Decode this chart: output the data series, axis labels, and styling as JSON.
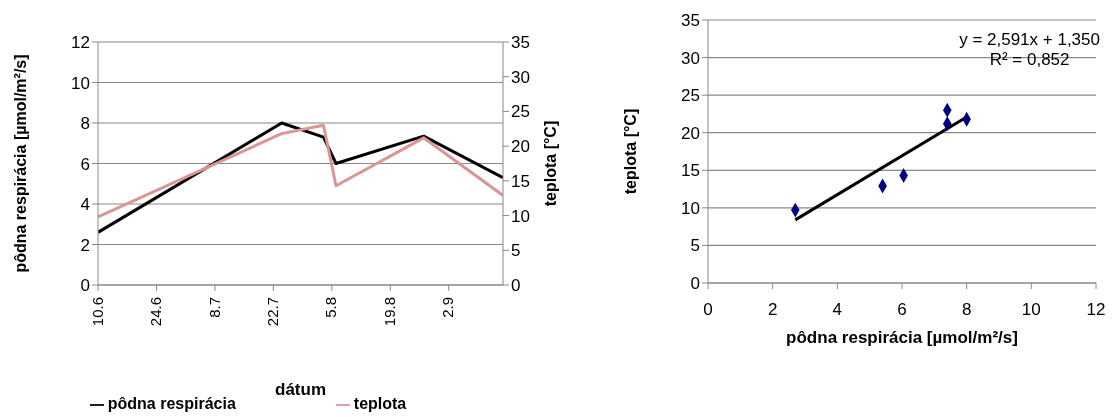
{
  "chart_data": [
    {
      "type": "line",
      "xlabel": "dátum",
      "ylabel": "pôdna respirácia [µmol/m²/s]",
      "y2label": "teplota [°C]",
      "x": [
        "--06-10",
        "--07-24",
        "--08-03",
        "--08-06",
        "--08-27",
        "--09-15"
      ],
      "xlim": [
        "--06-10",
        "--09-15"
      ],
      "xticks": [
        {
          "value": "--06-10",
          "label": "10.6"
        },
        {
          "value": "--06-24",
          "label": "24.6"
        },
        {
          "value": "--07-08",
          "label": "8.7"
        },
        {
          "value": "--07-22",
          "label": "22.7"
        },
        {
          "value": "--08-05",
          "label": "5.8"
        },
        {
          "value": "--08-19",
          "label": "19.8"
        },
        {
          "value": "--09-02",
          "label": "2.9"
        }
      ],
      "ylim": [
        0,
        12
      ],
      "yticks": [
        0,
        2,
        4,
        6,
        8,
        10,
        12
      ],
      "y2lim": [
        0,
        35
      ],
      "y2ticks": [
        0,
        5,
        10,
        15,
        20,
        25,
        30,
        35
      ],
      "series": [
        {
          "name": "pôdna respirácia",
          "color": "#000000",
          "values": [
            2.6,
            8.0,
            7.3,
            6.0,
            7.35,
            5.3
          ]
        },
        {
          "name": "teplota",
          "color": "#d99694",
          "axis": "y2",
          "values": [
            9.8,
            21.8,
            23.0,
            14.3,
            21.2,
            12.9
          ]
        }
      ],
      "grid": "y",
      "legend": "bottom",
      "marker": "none",
      "line_style": "solid"
    },
    {
      "type": "scatter",
      "xlabel": "pôdna respirácia [µmol/m²/s]",
      "ylabel": "teplota [°C]",
      "xlim": [
        0,
        12
      ],
      "xticks": [
        0,
        2,
        4,
        6,
        8,
        10,
        12
      ],
      "ylim": [
        0,
        35
      ],
      "yticks": [
        0,
        5,
        10,
        15,
        20,
        25,
        30,
        35
      ],
      "series": [
        {
          "color": "#000080",
          "marker": "diamond",
          "x": [
            2.7,
            8.0,
            7.4,
            6.05,
            7.4,
            5.4
          ],
          "values": [
            9.7,
            21.8,
            23.0,
            14.3,
            21.2,
            12.9
          ]
        },
        {
          "type": "line",
          "color": "#000000",
          "x": [
            2.7,
            8.0
          ],
          "values": [
            8.4,
            22.1
          ]
        }
      ],
      "annotations": [
        "y = 2,591x + 1,350",
        "R² = 0,852"
      ],
      "grid": "y",
      "legend": false
    }
  ]
}
